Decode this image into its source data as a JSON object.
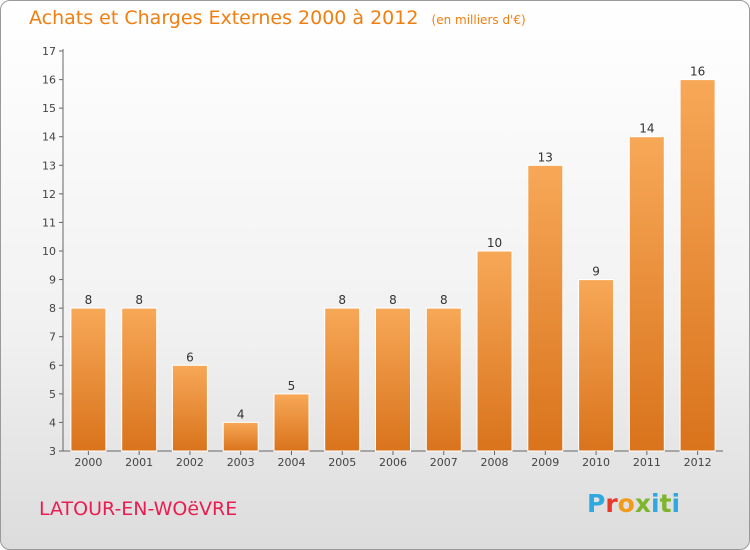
{
  "title": "Achats et Charges Externes 2000 à 2012",
  "unit": "(en milliers d'€)",
  "place": "LATOUR-EN-WOëVRE",
  "logo": "Proxiti",
  "colors": {
    "bar_top": "#f7a857",
    "bar_bottom": "#d9731c",
    "title": "#f07e10",
    "place": "#ea1d51",
    "logo_letters": [
      "#2ea8e0",
      "#e8382a",
      "#f29a1e",
      "#7fb52d",
      "#2ea8e0",
      "#7fb52d",
      "#2ea8e0"
    ]
  },
  "chart_data": {
    "type": "bar",
    "categories": [
      "2000",
      "2001",
      "2002",
      "2003",
      "2004",
      "2005",
      "2006",
      "2007",
      "2008",
      "2009",
      "2010",
      "2011",
      "2012"
    ],
    "values": [
      8,
      8,
      6,
      4,
      5,
      8,
      8,
      8,
      10,
      13,
      9,
      14,
      16
    ],
    "ylim": [
      3,
      17
    ],
    "yticks": [
      3,
      4,
      5,
      6,
      7,
      8,
      9,
      10,
      11,
      12,
      13,
      14,
      15,
      16,
      17
    ],
    "grid": false,
    "data_labels": true
  }
}
